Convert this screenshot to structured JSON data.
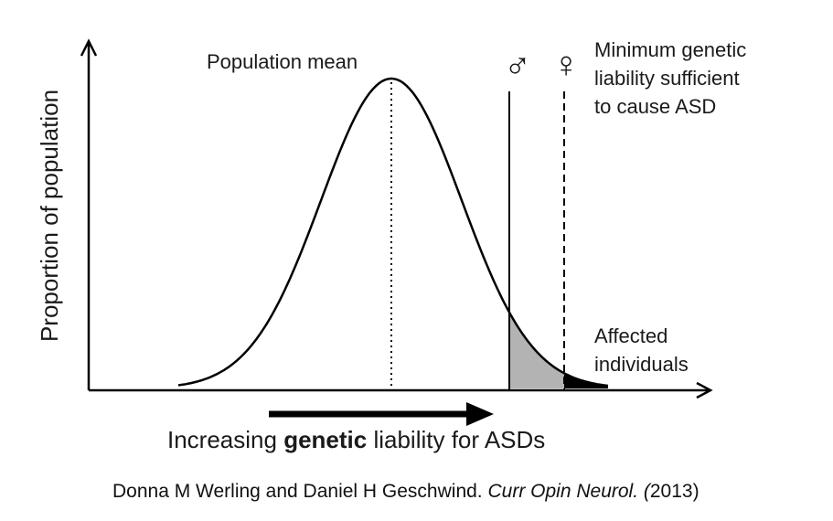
{
  "diagram": {
    "y_axis_label": "Proportion of population",
    "mean_label": "Population mean",
    "threshold_note": [
      "Minimum genetic",
      "liability sufficient",
      "to cause ASD"
    ],
    "male_symbol": "♂",
    "female_symbol": "♀",
    "affected_label": [
      "Affected",
      "individuals"
    ],
    "x_axis_label": {
      "before": "Increasing ",
      "bold": "genetic",
      "after": " liability for ASDs"
    },
    "colors": {
      "line": "#000000",
      "male_tail_fill": "#b3b3b3",
      "female_tail_fill": "#000000",
      "text": "#1a1a1a"
    }
  },
  "citation": {
    "authors": "Donna M Werling and Daniel H Geschwind. ",
    "journal": "Curr Opin Neurol. (",
    "year": "2013)"
  }
}
